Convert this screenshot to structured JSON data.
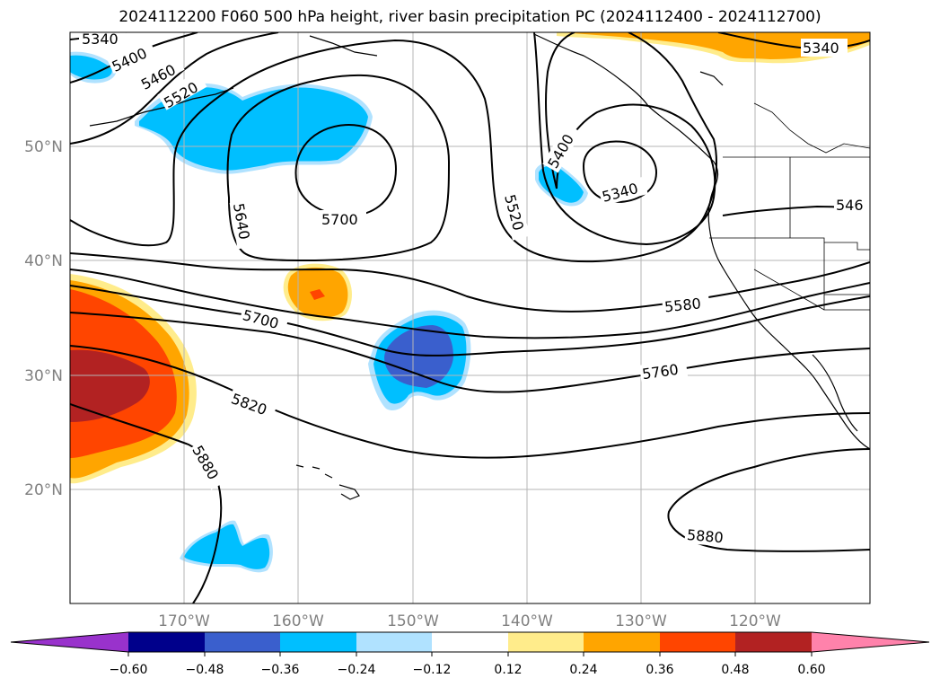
{
  "title": "2024112200 F060 500 hPa height, river basin precipitation PC (2024112400 - 2024112700)",
  "map": {
    "lat_labels": [
      "50°N",
      "40°N",
      "30°N",
      "20°N"
    ],
    "lon_labels": [
      "170°W",
      "160°W",
      "150°W",
      "140°W",
      "130°W",
      "120°W"
    ],
    "gridlines": true,
    "coastlines": true
  },
  "contour_labels": [
    "5340",
    "5400",
    "5460",
    "5520",
    "5640",
    "5700",
    "5520",
    "5400",
    "5340",
    "5340",
    "546",
    "5580",
    "5700",
    "5760",
    "5820",
    "5880",
    "5880"
  ],
  "colorbar": {
    "ticks": [
      "−0.60",
      "−0.48",
      "−0.36",
      "−0.24",
      "−0.12",
      "0.12",
      "0.24",
      "0.36",
      "0.48",
      "0.60"
    ],
    "colors": [
      "#9932cc",
      "#00008b",
      "#3a5fcd",
      "#00bfff",
      "#b0e2ff",
      "#ffffff",
      "#ffec8b",
      "#ffa500",
      "#ff4500",
      "#b22222",
      "#ff82ab"
    ],
    "extend": "both"
  }
}
